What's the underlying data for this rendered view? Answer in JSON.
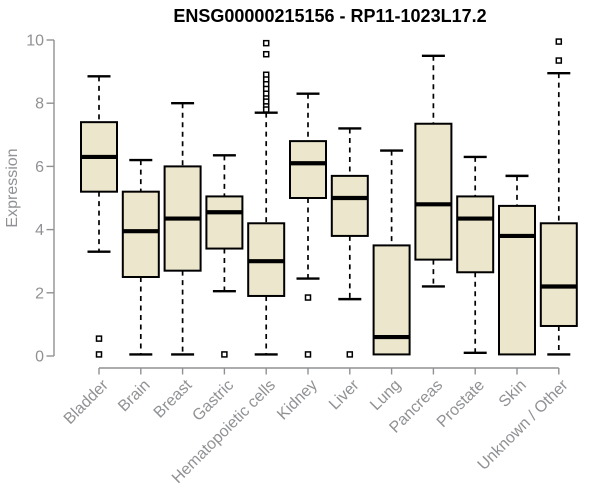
{
  "chart_data": {
    "type": "boxplot",
    "title": "ENSG00000215156 - RP11-1023L17.2",
    "ylabel": "Expression",
    "xlabel": "",
    "ylim": [
      0,
      10
    ],
    "yticks": [
      0,
      2,
      4,
      6,
      8,
      10
    ],
    "grid": false,
    "legend": "none",
    "categories": [
      "Bladder",
      "Brain",
      "Breast",
      "Gastric",
      "Hematopoietic cells",
      "Kidney",
      "Liver",
      "Lung",
      "Pancreas",
      "Prostate",
      "Skin",
      "Unknown / Other"
    ],
    "series": [
      {
        "name": "Bladder",
        "whisker_low": 3.3,
        "q1": 5.2,
        "median": 6.3,
        "q3": 7.4,
        "whisker_high": 8.85,
        "outliers": [
          0.55,
          0.05
        ]
      },
      {
        "name": "Brain",
        "whisker_low": 0.05,
        "q1": 2.5,
        "median": 3.95,
        "q3": 5.2,
        "whisker_high": 6.2,
        "outliers": []
      },
      {
        "name": "Breast",
        "whisker_low": 0.05,
        "q1": 2.7,
        "median": 4.35,
        "q3": 6.0,
        "whisker_high": 8.0,
        "outliers": []
      },
      {
        "name": "Gastric",
        "whisker_low": 2.05,
        "q1": 3.4,
        "median": 4.55,
        "q3": 5.05,
        "whisker_high": 6.35,
        "outliers": [
          0.05
        ]
      },
      {
        "name": "Hematopoietic cells",
        "whisker_low": 0.05,
        "q1": 1.9,
        "median": 3.0,
        "q3": 4.2,
        "whisker_high": 7.7,
        "outliers": [
          9.9,
          9.55,
          8.9,
          8.75,
          8.6,
          8.45,
          8.3,
          8.15,
          8.05,
          7.9,
          7.8
        ]
      },
      {
        "name": "Kidney",
        "whisker_low": 2.45,
        "q1": 5.0,
        "median": 6.1,
        "q3": 6.8,
        "whisker_high": 8.3,
        "outliers": [
          1.85,
          0.05
        ]
      },
      {
        "name": "Liver",
        "whisker_low": 1.8,
        "q1": 3.8,
        "median": 5.0,
        "q3": 5.7,
        "whisker_high": 7.2,
        "outliers": [
          0.05
        ]
      },
      {
        "name": "Lung",
        "whisker_low": 0.05,
        "q1": 0.05,
        "median": 0.6,
        "q3": 3.5,
        "whisker_high": 6.5,
        "outliers": []
      },
      {
        "name": "Pancreas",
        "whisker_low": 2.2,
        "q1": 3.05,
        "median": 4.8,
        "q3": 7.35,
        "whisker_high": 9.5,
        "outliers": []
      },
      {
        "name": "Prostate",
        "whisker_low": 0.1,
        "q1": 2.65,
        "median": 4.35,
        "q3": 5.05,
        "whisker_high": 6.3,
        "outliers": []
      },
      {
        "name": "Skin",
        "whisker_low": 0.05,
        "q1": 0.05,
        "median": 3.8,
        "q3": 4.75,
        "whisker_high": 5.7,
        "outliers": []
      },
      {
        "name": "Unknown / Other",
        "whisker_low": 0.05,
        "q1": 0.95,
        "median": 2.2,
        "q3": 4.2,
        "whisker_high": 8.95,
        "outliers": [
          9.95,
          9.35
        ]
      }
    ],
    "colors": {
      "box_fill": "#ece7cc",
      "box_border": "#000000",
      "median": "#000000",
      "whisker": "#000000",
      "outlier_stroke": "#000000",
      "outlier_fill": "#ffffff",
      "axis": "#8f9194",
      "title": "#000000",
      "background": "#ffffff"
    }
  }
}
